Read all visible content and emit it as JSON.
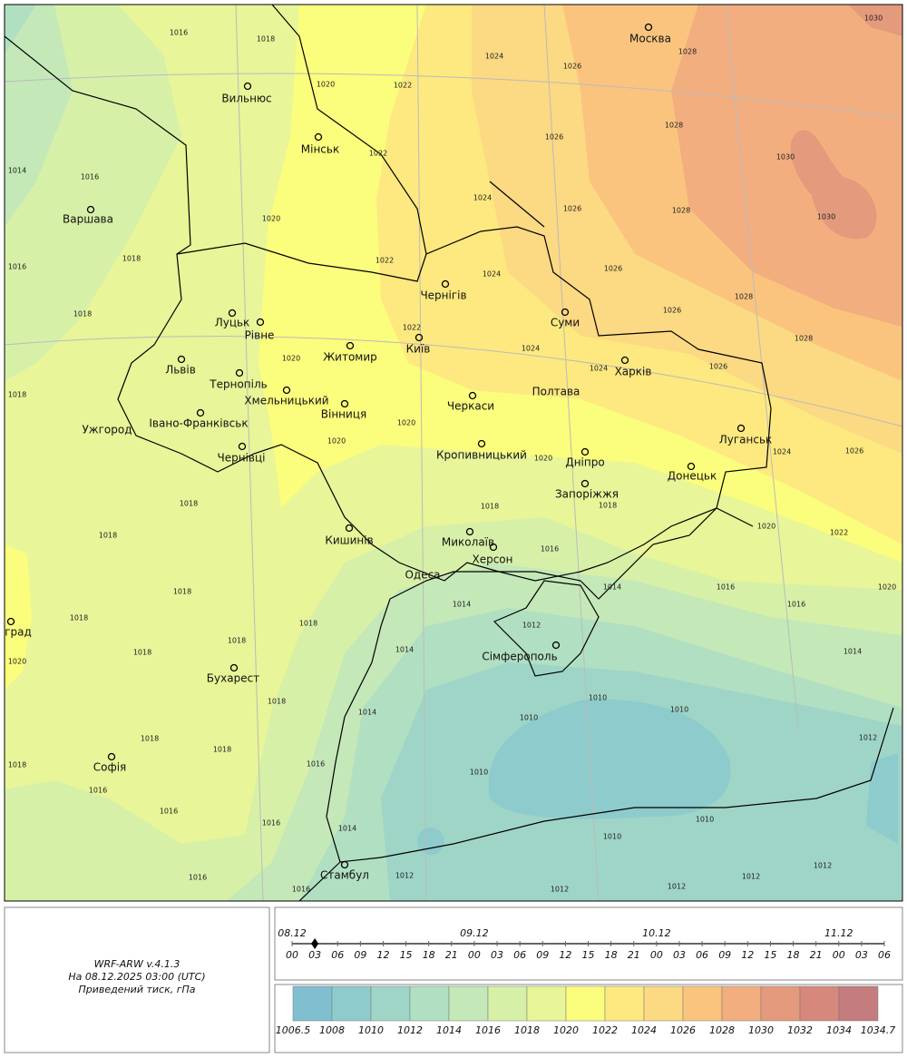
{
  "map": {
    "cities": [
      "Москва",
      "Вильнюс",
      "Мінськ",
      "Варшава",
      "Чернігів",
      "Суми",
      "Луцьк",
      "Рівне",
      "Житомир",
      "Київ",
      "Львів",
      "Тернопіль",
      "Хмельницький",
      "Харків",
      "Полтава",
      "Черкаси",
      "Вінниця",
      "Ужгород",
      "Івано-Франківськ",
      "Чернівці",
      "Кропивницький",
      "Дніпро",
      "Луганськ",
      "Донецьк",
      "Запоріжжя",
      "Кишинів",
      "Миколаїв",
      "Херсон",
      "Одеса",
      "Сімферополь",
      "Бухарест",
      "Софія",
      "Стамбул",
      "град"
    ],
    "isobar_labels": [
      1030,
      1016,
      1018,
      1024,
      1026,
      1028,
      1020,
      1022,
      1028,
      1026,
      1022,
      1030,
      1014,
      1016,
      1024,
      1026,
      1028,
      1030,
      1020,
      1018,
      1022,
      1016,
      1024,
      1026,
      1028,
      1018,
      1026,
      1022,
      1028,
      1024,
      1020,
      1024,
      1026,
      1018,
      1020,
      1020,
      1024,
      1026,
      1020,
      1018,
      1018,
      1018,
      1020,
      1022,
      1018,
      1016,
      1018,
      1016,
      1020,
      1018,
      1014,
      1014,
      1016,
      1018,
      1012,
      1014,
      1014,
      1018,
      1018,
      1020,
      1018,
      1014,
      1010,
      1010,
      1010,
      1018,
      1018,
      1012,
      1018,
      1016,
      1010,
      1016,
      1016,
      1010,
      1014,
      1016,
      1010,
      1016,
      1012,
      1012,
      1012,
      1016,
      1012,
      1012
    ]
  },
  "info": {
    "model": "WRF-ARW v.4.1.3",
    "time": "На 08.12.2025 03:00 (UTC)",
    "field": "Приведений тиск, гПа"
  },
  "timeline": {
    "dates": [
      "08.12",
      "09.12",
      "10.12",
      "11.12"
    ],
    "hours": [
      "00",
      "03",
      "06",
      "09",
      "12",
      "15",
      "18",
      "21",
      "00",
      "03",
      "06",
      "09",
      "12",
      "15",
      "18",
      "21",
      "00",
      "03",
      "06",
      "09",
      "12",
      "15",
      "18",
      "21",
      "00",
      "03",
      "06"
    ]
  },
  "colorbar": {
    "labels": [
      1006.5,
      1008,
      1010,
      1012,
      1014,
      1016,
      1018,
      1020,
      1022,
      1024,
      1026,
      1028,
      1030,
      1032,
      1034,
      1034.7
    ],
    "colors": [
      "#7fbfd0",
      "#8ecbcc",
      "#9fd5c7",
      "#b1dfc2",
      "#c4e8b8",
      "#d7f0a8",
      "#e8f598",
      "#fbfd7d",
      "#fde97f",
      "#fcd983",
      "#fac47f",
      "#f2ae7f",
      "#e49a7c",
      "#d5887b",
      "#c47c7e"
    ]
  }
}
